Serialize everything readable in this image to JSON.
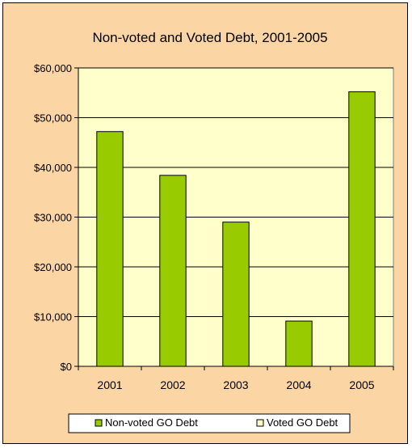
{
  "chart_data": {
    "type": "bar",
    "title": "Non-voted and Voted Debt, 2001-2005",
    "xlabel": "",
    "ylabel": "",
    "categories": [
      "2001",
      "2002",
      "2003",
      "2004",
      "2005"
    ],
    "series": [
      {
        "name": "Non-voted GO Debt",
        "values": [
          47200,
          38400,
          29000,
          9100,
          55200
        ],
        "color": "#99cc00"
      },
      {
        "name": "Voted GO Debt",
        "values": [
          0,
          0,
          0,
          0,
          0
        ],
        "color": "#ffffcc"
      }
    ],
    "ylim": [
      0,
      60000
    ],
    "yticks": [
      0,
      10000,
      20000,
      30000,
      40000,
      50000,
      60000
    ],
    "ytick_labels": [
      "$0",
      "$10,000",
      "$20,000",
      "$30,000",
      "$40,000",
      "$50,000",
      "$60,000"
    ],
    "grid": true,
    "legend_position": "bottom",
    "colors": {
      "background": "#fcd5a4",
      "plot_area": "#ffffcc",
      "gridline": "#000000",
      "bar_border": "#000000"
    }
  }
}
